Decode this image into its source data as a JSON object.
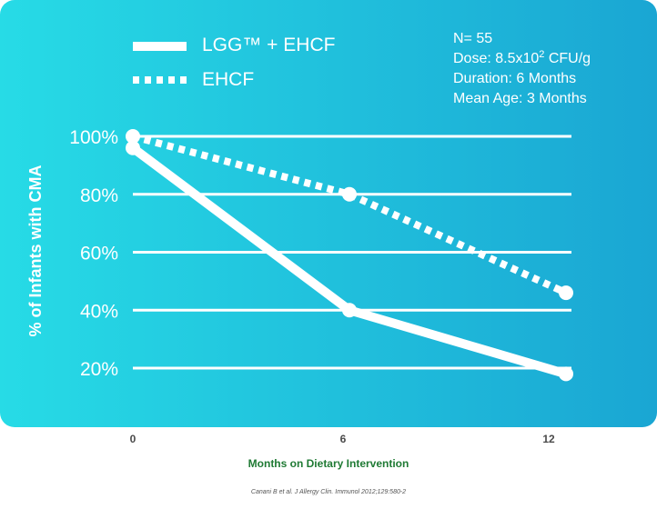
{
  "chart_data": {
    "type": "line",
    "x": [
      0,
      6,
      12
    ],
    "xlabel": "Months on Dietary Intervention",
    "ylabel": "% of Infants with CMA",
    "ylim": [
      0,
      100
    ],
    "yticks": [
      "20%",
      "40%",
      "60%",
      "80%",
      "100%"
    ],
    "ytick_values": [
      20,
      40,
      60,
      80,
      100
    ],
    "xticks": [
      "0",
      "6",
      "12"
    ],
    "series": [
      {
        "name": "LGG™ + EHCF",
        "style": "solid",
        "values": [
          96,
          40,
          18
        ]
      },
      {
        "name": "EHCF",
        "style": "dotted",
        "values": [
          100,
          80,
          46
        ]
      }
    ],
    "legend_position": "top-left",
    "info_lines": [
      "N= 55",
      "Duration: 6 Months",
      "Mean Age: 3 Months"
    ],
    "dose": {
      "prefix": "Dose: 8.5x10",
      "exponent": "2",
      "suffix": " CFU/g"
    },
    "colors": {
      "gradient_start": "#27dbe6",
      "gradient_end": "#1aa6d3",
      "line": "#ffffff",
      "grid": "#ffffff",
      "axis_label": "#1f7a34",
      "tick_text": "#4a4a4a"
    },
    "citation": "Canani B et al. J Allergy Clin. Immunol 2012;129:580-2"
  }
}
